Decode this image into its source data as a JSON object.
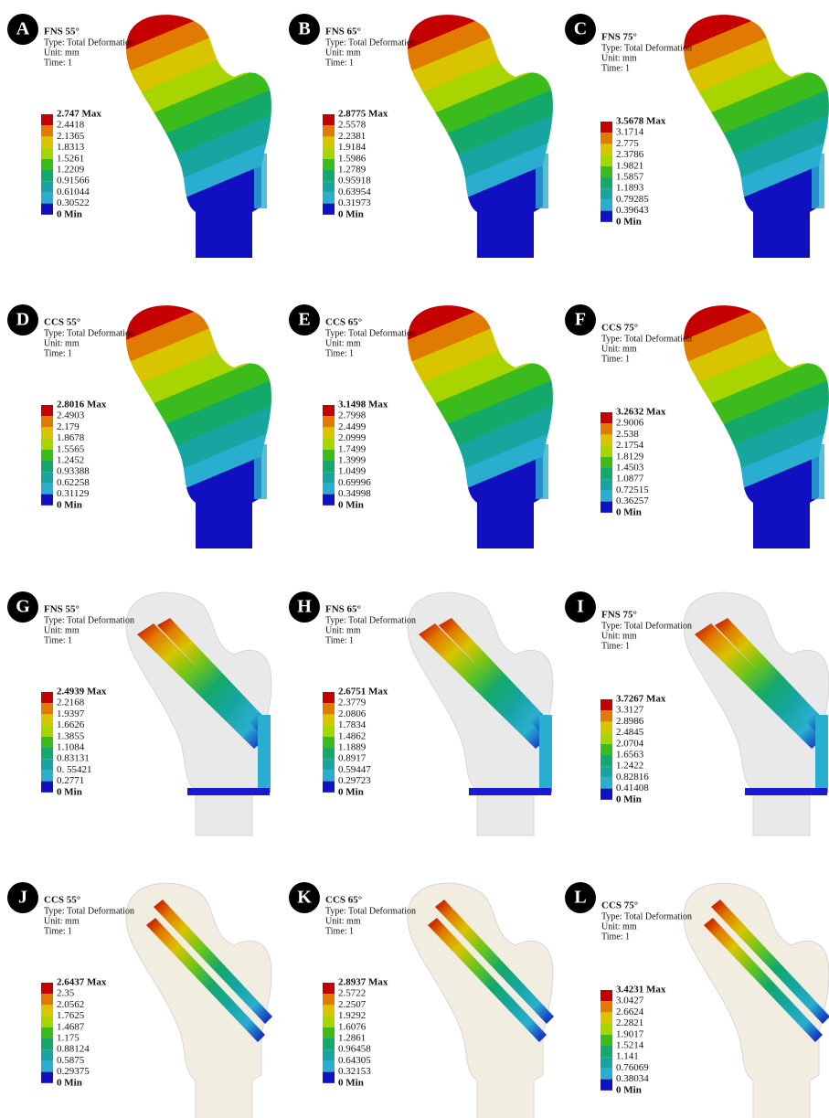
{
  "panels": [
    {
      "letter": "A",
      "title": "FNS 55°",
      "type": "Type: Total Deformation",
      "unit": "Unit: mm",
      "time": "Time: 1",
      "legend": [
        "2.747 Max",
        "2.4418",
        "2.1365",
        "1.8313",
        "1.5261",
        "1.2209",
        "0.91566",
        "0.61044",
        "0.30522",
        "0 Min"
      ]
    },
    {
      "letter": "B",
      "title": "FNS 65°",
      "type": "Type: Total Deformation",
      "unit": "Unit: mm",
      "time": "Time: 1",
      "legend": [
        "2.8775 Max",
        "2.5578",
        "2.2381",
        "1.9184",
        "1.5986",
        "1.2789",
        "0.95918",
        "0.63954",
        "0.31973",
        "0 Min"
      ]
    },
    {
      "letter": "C",
      "title": "FNS 75°",
      "type": "Type: Total Deformation",
      "unit": "Unit: mm",
      "time": "Time: 1",
      "legend": [
        "3.5678 Max",
        "3.1714",
        "2.775",
        "2.3786",
        "1.9821",
        "1.5857",
        "1.1893",
        "0.79285",
        "0.39643",
        "0 Min"
      ]
    },
    {
      "letter": "D",
      "title": "CCS 55°",
      "type": "Type: Total Deformation",
      "unit": "Unit: mm",
      "time": "Time: 1",
      "legend": [
        "2.8016 Max",
        "2.4903",
        "2.179",
        "1.8678",
        "1.5565",
        "1.2452",
        "0.93388",
        "0.62258",
        "0.31129",
        "0 Min"
      ]
    },
    {
      "letter": "E",
      "title": "CCS 65°",
      "type": "Type: Total Deformation",
      "unit": "Unit: mm",
      "time": "Time: 1",
      "legend": [
        "3.1498 Max",
        "2.7998",
        "2.4499",
        "2.0999",
        "1.7499",
        "1.3999",
        "1.0499",
        "0.69996",
        "0.34998",
        "0 Min"
      ]
    },
    {
      "letter": "F",
      "title": "CCS 75°",
      "type": "Type: Total Deformation",
      "unit": "Unit: mm",
      "time": "Time: 1",
      "legend": [
        "3.2632 Max",
        "2.9006",
        "2.538",
        "2.1754",
        "1.8129",
        "1.4503",
        "1.0877",
        "0.72515",
        "0.36257",
        "0 Min"
      ]
    },
    {
      "letter": "G",
      "title": "FNS 55°",
      "type": "Type: Total Deformation",
      "unit": "Unit: mm",
      "time": "Time: 1",
      "legend": [
        "2.4939 Max",
        "2.2168",
        "1.9397",
        "1.6626",
        "1.3855",
        "1.1084",
        "0.83131",
        "0. 55421",
        "0.2771",
        "0 Min"
      ]
    },
    {
      "letter": "H",
      "title": "FNS 65°",
      "type": "Type: Total Deformation",
      "unit": "Unit: mm",
      "time": "Time: 1",
      "legend": [
        "2.6751 Max",
        "2.3779",
        "2.0806",
        "1.7834",
        "1.4862",
        "1.1889",
        "0.8917",
        "0.59447",
        "0.29723",
        "0 Min"
      ]
    },
    {
      "letter": "I",
      "title": "FNS 75°",
      "type": "Type: Total Deformation",
      "unit": "Unit: mm",
      "time": "Time: 1",
      "legend": [
        "3.7267 Max",
        "3.3127",
        "2.8986",
        "2.4845",
        "2.0704",
        "1.6563",
        "1.2422",
        "0.82816",
        "0.41408",
        "0 Min"
      ]
    },
    {
      "letter": "J",
      "title": "CCS 55°",
      "type": "Type: Total Deformation",
      "unit": "Unit: mm",
      "time": "Time: 1",
      "legend": [
        "2.6437 Max",
        "2.35",
        "2.0562",
        "1.7625",
        "1.4687",
        "1.175",
        "0.88124",
        "0.5875",
        "0.29375",
        "0 Min"
      ]
    },
    {
      "letter": "K",
      "title": "CCS 65°",
      "type": "Type: Total Deformation",
      "unit": "Unit: mm",
      "time": "Time: 1",
      "legend": [
        "2.8937 Max",
        "2.5722",
        "2.2507",
        "1.9292",
        "1.6076",
        "1.2861",
        "0.96458",
        "0.64305",
        "0.32153",
        "0 Min"
      ]
    },
    {
      "letter": "L",
      "title": "CCS 75°",
      "type": "Type: Total Deformation",
      "unit": "Unit: mm",
      "time": "Time: 1",
      "legend": [
        "3.4231 Max",
        "3.0427",
        "2.6624",
        "2.2821",
        "1.9017",
        "1.5214",
        "1.141",
        "0.76069",
        "0.38034",
        "0 Min"
      ]
    }
  ]
}
